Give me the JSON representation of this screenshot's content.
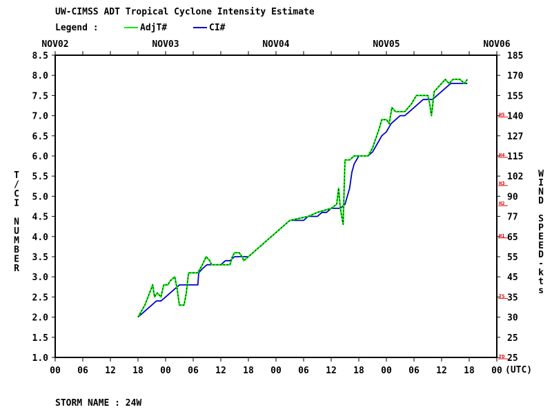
{
  "header": {
    "title": "UW-CIMSS ADT Tropical Cyclone Intensity Estimate",
    "legend_label": "Legend :",
    "utc_label": "(UTC)"
  },
  "footer": {
    "storm_name": "STORM NAME : 24W"
  },
  "chart_data": {
    "type": "line",
    "ylabel": "T/CI NUMBER",
    "ylabel_right": "WIND SPEED-kts",
    "y_ticks": [
      "1.0",
      "1.5",
      "2.0",
      "2.5",
      "3.0",
      "3.5",
      "4.0",
      "4.5",
      "5.0",
      "5.5",
      "6.0",
      "6.5",
      "7.0",
      "7.5",
      "8.0",
      "8.5"
    ],
    "ylim": [
      1.0,
      8.5
    ],
    "right_ticks": [
      "25",
      "25",
      "30",
      "35",
      "45",
      "55",
      "65",
      "77",
      "90",
      "102",
      "115",
      "127",
      "140",
      "155",
      "170",
      "185"
    ],
    "day_labels": [
      "NOV02",
      "NOV03",
      "NOV04",
      "NOV05",
      "NOV06"
    ],
    "hour_labels": [
      "00",
      "06",
      "12",
      "18",
      "00",
      "06",
      "12",
      "18",
      "00",
      "06",
      "12",
      "18",
      "00",
      "06",
      "12",
      "18",
      "00"
    ],
    "xlim_hours": [
      0,
      96
    ],
    "category_marks": [
      {
        "label": "TD",
        "t": 1.0
      },
      {
        "label": "TS",
        "t": 2.5
      },
      {
        "label": "H1",
        "t": 4.0
      },
      {
        "label": "H2",
        "t": 4.8
      },
      {
        "label": "H3",
        "t": 5.3
      },
      {
        "label": "H4",
        "t": 6.0
      },
      {
        "label": "H5",
        "t": 7.0
      }
    ],
    "series": [
      {
        "name": "AdjT#",
        "color": "#00ee00",
        "points": [
          [
            18,
            2.0
          ],
          [
            19,
            2.2
          ],
          [
            19.5,
            2.3
          ],
          [
            20.5,
            2.6
          ],
          [
            21.2,
            2.8
          ],
          [
            21.6,
            2.5
          ],
          [
            22.2,
            2.6
          ],
          [
            23,
            2.5
          ],
          [
            23.6,
            2.8
          ],
          [
            24.5,
            2.8
          ],
          [
            25,
            2.9
          ],
          [
            26,
            3.0
          ],
          [
            26.5,
            2.7
          ],
          [
            27,
            2.3
          ],
          [
            28,
            2.3
          ],
          [
            28.5,
            2.6
          ],
          [
            29,
            3.1
          ],
          [
            31,
            3.1
          ],
          [
            32,
            3.3
          ],
          [
            32.8,
            3.5
          ],
          [
            33.6,
            3.4
          ],
          [
            34,
            3.3
          ],
          [
            36,
            3.3
          ],
          [
            38,
            3.3
          ],
          [
            38.5,
            3.5
          ],
          [
            39,
            3.6
          ],
          [
            40,
            3.6
          ],
          [
            40.6,
            3.5
          ],
          [
            41,
            3.4
          ],
          [
            42,
            3.5
          ],
          [
            43,
            3.6
          ],
          [
            44,
            3.7
          ],
          [
            45,
            3.8
          ],
          [
            46,
            3.9
          ],
          [
            47,
            4.0
          ],
          [
            48,
            4.1
          ],
          [
            49,
            4.2
          ],
          [
            50,
            4.3
          ],
          [
            51,
            4.4
          ],
          [
            55,
            4.5
          ],
          [
            57,
            4.6
          ],
          [
            60,
            4.7
          ],
          [
            61.2,
            4.8
          ],
          [
            61.6,
            5.2
          ],
          [
            62,
            4.7
          ],
          [
            62.6,
            4.3
          ],
          [
            63,
            5.9
          ],
          [
            64,
            5.9
          ],
          [
            65,
            6.0
          ],
          [
            68,
            6.0
          ],
          [
            69,
            6.2
          ],
          [
            69.6,
            6.4
          ],
          [
            70.5,
            6.7
          ],
          [
            71,
            6.9
          ],
          [
            72,
            6.9
          ],
          [
            72.6,
            6.8
          ],
          [
            73.2,
            7.2
          ],
          [
            74,
            7.1
          ],
          [
            76,
            7.1
          ],
          [
            77.5,
            7.3
          ],
          [
            78.5,
            7.5
          ],
          [
            81,
            7.5
          ],
          [
            81.4,
            7.3
          ],
          [
            81.8,
            7.0
          ],
          [
            82.4,
            7.6
          ],
          [
            83.2,
            7.7
          ],
          [
            84,
            7.8
          ],
          [
            84.8,
            7.9
          ],
          [
            85.6,
            7.8
          ],
          [
            86.5,
            7.9
          ],
          [
            88,
            7.9
          ],
          [
            89,
            7.8
          ],
          [
            89.6,
            7.9
          ]
        ]
      },
      {
        "name": "CI#",
        "color": "#0000cc",
        "points": [
          [
            18,
            2.0
          ],
          [
            19,
            2.1
          ],
          [
            20,
            2.2
          ],
          [
            21,
            2.3
          ],
          [
            22,
            2.4
          ],
          [
            23,
            2.4
          ],
          [
            24,
            2.5
          ],
          [
            25,
            2.6
          ],
          [
            26,
            2.7
          ],
          [
            27,
            2.8
          ],
          [
            29,
            2.8
          ],
          [
            31,
            2.8
          ],
          [
            31.2,
            3.1
          ],
          [
            32,
            3.2
          ],
          [
            33,
            3.3
          ],
          [
            36,
            3.3
          ],
          [
            37,
            3.4
          ],
          [
            38,
            3.4
          ],
          [
            39,
            3.5
          ],
          [
            40,
            3.5
          ],
          [
            41,
            3.5
          ],
          [
            42,
            3.5
          ],
          [
            43,
            3.6
          ],
          [
            44,
            3.7
          ],
          [
            45,
            3.8
          ],
          [
            46,
            3.9
          ],
          [
            47,
            4.0
          ],
          [
            48,
            4.1
          ],
          [
            49,
            4.2
          ],
          [
            50,
            4.3
          ],
          [
            51,
            4.4
          ],
          [
            54,
            4.4
          ],
          [
            55,
            4.5
          ],
          [
            57,
            4.5
          ],
          [
            58,
            4.6
          ],
          [
            59,
            4.6
          ],
          [
            60,
            4.7
          ],
          [
            61,
            4.7
          ],
          [
            62,
            4.7
          ],
          [
            63,
            4.8
          ],
          [
            64,
            5.2
          ],
          [
            64.5,
            5.6
          ],
          [
            65,
            5.8
          ],
          [
            66,
            6.0
          ],
          [
            68,
            6.0
          ],
          [
            69,
            6.1
          ],
          [
            70,
            6.3
          ],
          [
            71,
            6.5
          ],
          [
            72,
            6.6
          ],
          [
            73,
            6.8
          ],
          [
            74,
            6.9
          ],
          [
            75,
            7.0
          ],
          [
            76,
            7.0
          ],
          [
            77,
            7.1
          ],
          [
            78,
            7.2
          ],
          [
            79,
            7.3
          ],
          [
            80,
            7.4
          ],
          [
            81,
            7.4
          ],
          [
            82,
            7.4
          ],
          [
            83,
            7.5
          ],
          [
            84,
            7.6
          ],
          [
            85,
            7.7
          ],
          [
            86,
            7.8
          ],
          [
            88,
            7.8
          ],
          [
            89.6,
            7.8
          ]
        ]
      }
    ]
  }
}
